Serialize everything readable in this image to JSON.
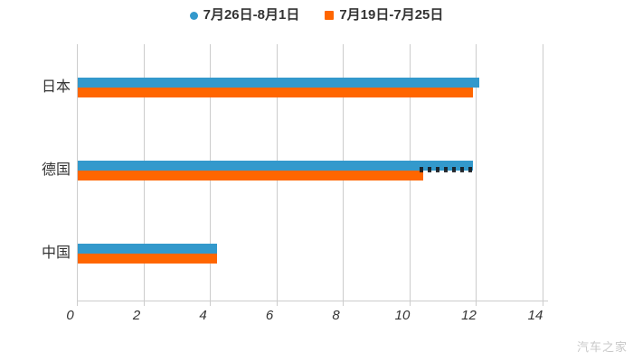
{
  "chart_data": {
    "type": "bar",
    "orientation": "horizontal",
    "title": "",
    "xlabel": "",
    "ylabel": "",
    "categories": [
      "日本",
      "德国",
      "中国"
    ],
    "series": [
      {
        "name": "7月26日-8月1日",
        "color": "#3399cc",
        "marker": "circle",
        "values": [
          12.1,
          11.9,
          4.2
        ]
      },
      {
        "name": "7月19日-7月25日",
        "color": "#ff6600",
        "marker": "square",
        "values": [
          11.9,
          10.4,
          4.2
        ]
      }
    ],
    "xlim": [
      0,
      14
    ],
    "xticks": [
      0,
      2,
      4,
      6,
      8,
      10,
      12,
      14
    ],
    "grid": "vertical-lines",
    "legend_position": "top-center"
  },
  "watermark": {
    "text": "汽车之家",
    "color": "#c8c8c8"
  },
  "colors": {
    "background": "#ffffff",
    "grid": "#cccccc",
    "axis": "#cccccc",
    "text": "#333333",
    "series_blue": "#3399cc",
    "series_orange": "#ff6600"
  }
}
